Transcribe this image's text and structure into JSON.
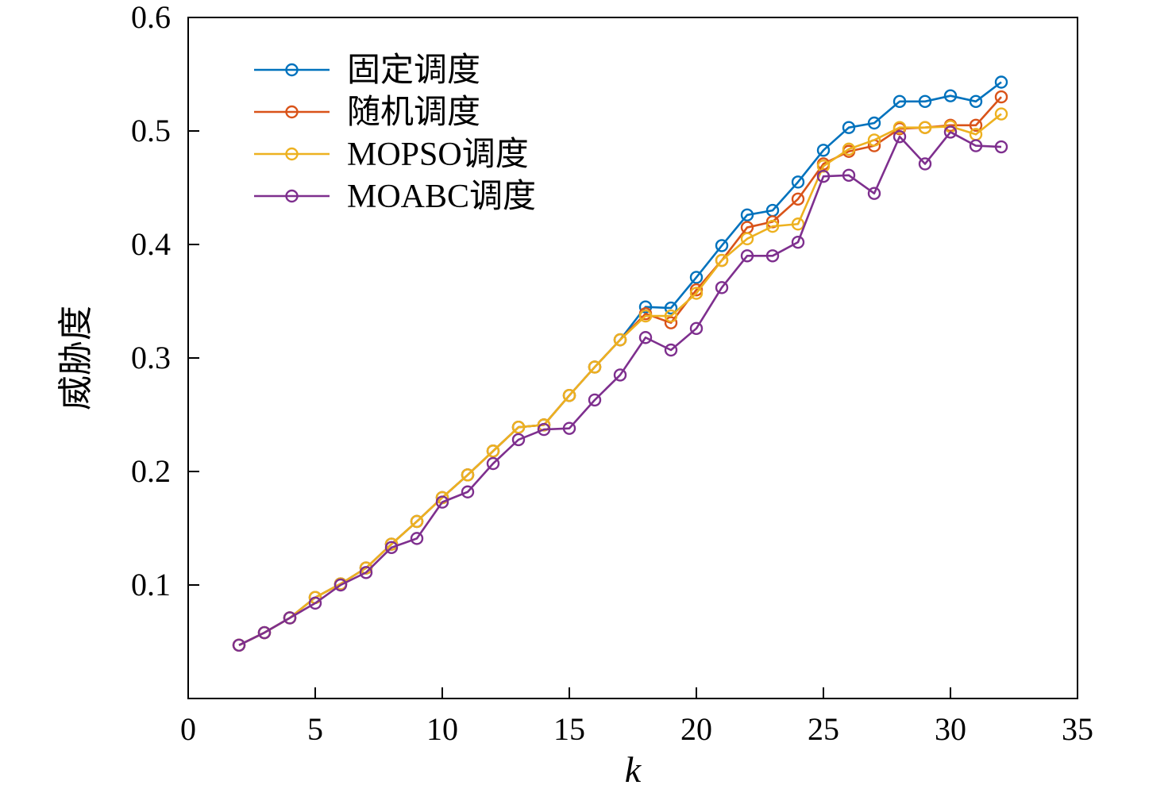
{
  "figure": {
    "background": "#ffffff",
    "axis_color": "#000000"
  },
  "chart_data": {
    "type": "line",
    "title": "",
    "xlabel": "k",
    "ylabel": "威胁度",
    "xlim": [
      0,
      35
    ],
    "ylim": [
      0,
      0.6
    ],
    "xticks": [
      0,
      5,
      10,
      15,
      20,
      25,
      30,
      35
    ],
    "yticks": [
      0.1,
      0.2,
      0.3,
      0.4,
      0.5,
      0.6
    ],
    "grid": false,
    "legend_position": "top-left",
    "marker": "circle-open",
    "x": [
      2,
      3,
      4,
      5,
      6,
      7,
      8,
      9,
      10,
      11,
      12,
      13,
      14,
      15,
      16,
      17,
      18,
      19,
      20,
      21,
      22,
      23,
      24,
      25,
      26,
      27,
      28,
      29,
      30,
      31,
      32
    ],
    "series": [
      {
        "id": "fixed",
        "name": "固定调度",
        "color": "#0072BD",
        "values": [
          0.047,
          0.058,
          0.071,
          0.089,
          0.101,
          0.115,
          0.136,
          0.156,
          0.177,
          0.197,
          0.218,
          0.239,
          0.241,
          0.267,
          0.292,
          0.316,
          0.345,
          0.344,
          0.371,
          0.399,
          0.426,
          0.43,
          0.455,
          0.483,
          0.503,
          0.507,
          0.526,
          0.526,
          0.531,
          0.526,
          0.543
        ]
      },
      {
        "id": "random",
        "name": "随机调度",
        "color": "#D95319",
        "values": [
          0.047,
          0.058,
          0.071,
          0.089,
          0.101,
          0.115,
          0.136,
          0.156,
          0.177,
          0.197,
          0.218,
          0.239,
          0.241,
          0.267,
          0.292,
          0.316,
          0.339,
          0.331,
          0.36,
          0.386,
          0.415,
          0.42,
          0.44,
          0.471,
          0.482,
          0.487,
          0.502,
          0.503,
          0.505,
          0.505,
          0.53
        ]
      },
      {
        "id": "mopso",
        "name": "MOPSO调度",
        "color": "#EDB120",
        "values": [
          0.047,
          0.058,
          0.071,
          0.089,
          0.101,
          0.115,
          0.136,
          0.156,
          0.177,
          0.197,
          0.218,
          0.239,
          0.241,
          0.267,
          0.292,
          0.316,
          0.337,
          0.337,
          0.357,
          0.386,
          0.405,
          0.416,
          0.418,
          0.469,
          0.484,
          0.492,
          0.503,
          0.503,
          0.504,
          0.497,
          0.515
        ]
      },
      {
        "id": "moabc",
        "name": "MOABC调度",
        "color": "#7E2F8E",
        "values": [
          0.047,
          0.058,
          0.071,
          0.084,
          0.1,
          0.111,
          0.133,
          0.141,
          0.173,
          0.182,
          0.207,
          0.228,
          0.237,
          0.238,
          0.263,
          0.285,
          0.318,
          0.307,
          0.326,
          0.362,
          0.39,
          0.39,
          0.402,
          0.46,
          0.461,
          0.445,
          0.495,
          0.471,
          0.499,
          0.487,
          0.486
        ]
      }
    ]
  }
}
